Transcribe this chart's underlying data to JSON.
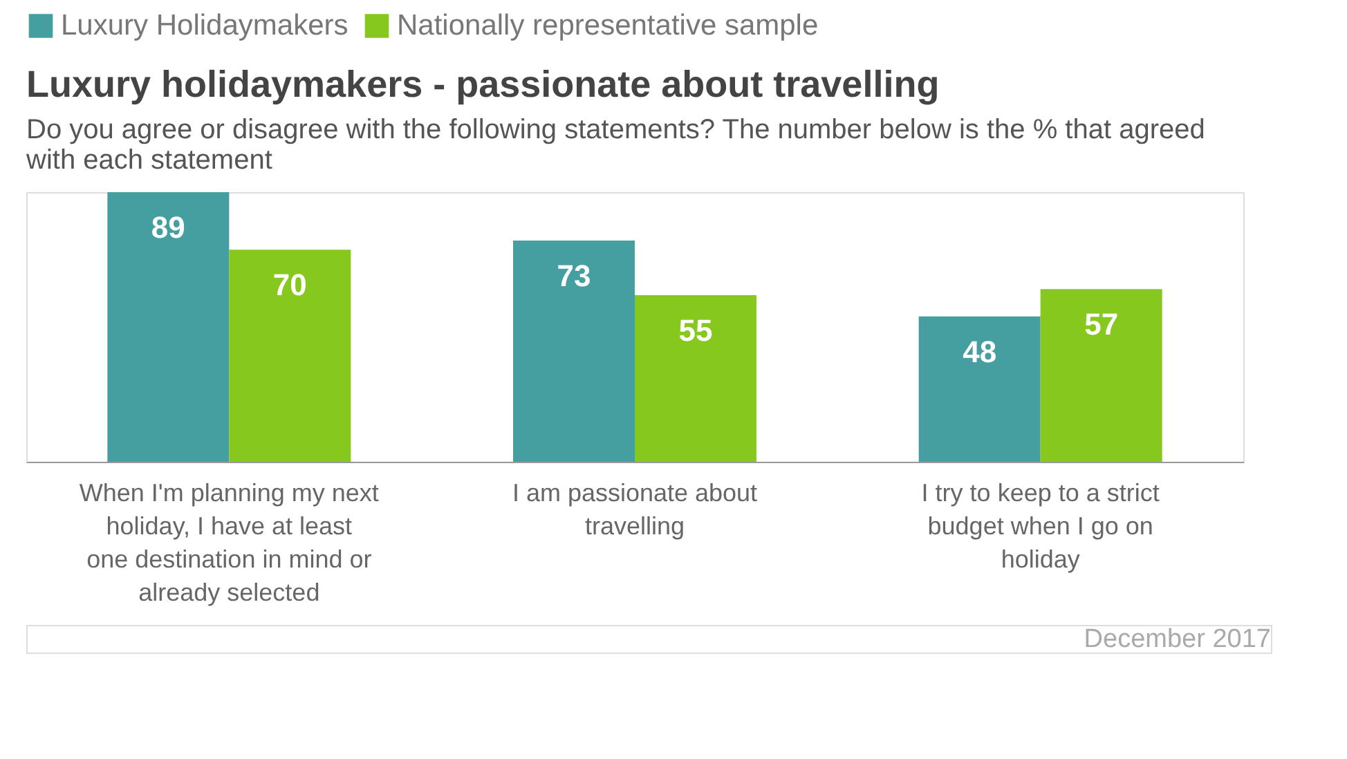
{
  "chart_data": {
    "type": "bar",
    "title": "Luxury holidaymakers - passionate about travelling",
    "subtitle": "Do you agree or disagree with the following statements? The number below is the % that agreed with each statement",
    "categories": [
      "When I'm planning my next holiday, I have at least one destination in mind or already selected",
      "I am passionate about travelling",
      "I try to keep to a strict budget when I go on holiday"
    ],
    "series": [
      {
        "name": "Luxury Holidaymakers",
        "color": "#459ea0",
        "values": [
          89,
          73,
          48
        ]
      },
      {
        "name": "Nationally representative sample",
        "color": "#86c81e",
        "values": [
          70,
          55,
          57
        ]
      }
    ],
    "data_labels": true,
    "legend": "top",
    "grid": false,
    "tick_labels": "x",
    "annotations": [
      "December 2017"
    ]
  }
}
